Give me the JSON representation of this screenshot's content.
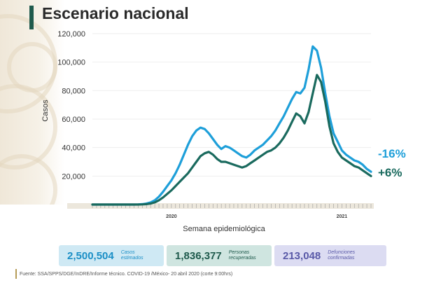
{
  "title": "Escenario nacional",
  "chart_data": {
    "type": "line",
    "ylabel": "Casos",
    "xlabel": "Semana epidemiológica",
    "ylim": [
      0,
      120000
    ],
    "yticks": [
      "120,000",
      "100,000",
      "80,000",
      "60,000",
      "40,000",
      "20,000"
    ],
    "ytick_values": [
      120000,
      100000,
      80000,
      60000,
      40000,
      20000
    ],
    "year_labels": [
      {
        "label": "2020",
        "week": 19
      },
      {
        "label": "2021",
        "week": 60
      }
    ],
    "week_count": 68,
    "series": [
      {
        "color": "#1e9fd9",
        "end_label": "-16%",
        "values": [
          0,
          0,
          0,
          0,
          0,
          0,
          0,
          0,
          0,
          0,
          0,
          100,
          300,
          700,
          1500,
          3000,
          5500,
          9000,
          13000,
          17000,
          22000,
          28000,
          35000,
          42000,
          48000,
          52000,
          54000,
          53000,
          50000,
          46000,
          42000,
          39000,
          41000,
          40000,
          38000,
          36000,
          34000,
          33000,
          35000,
          38000,
          40000,
          42000,
          45000,
          48000,
          52000,
          57000,
          62000,
          68000,
          74000,
          79000,
          78000,
          82000,
          95000,
          111000,
          108000,
          96000,
          78000,
          62000,
          50000,
          44000,
          38000,
          35000,
          33000,
          31000,
          30000,
          28000,
          25000,
          23000
        ]
      },
      {
        "color": "#1a6a5e",
        "end_label": "+6%",
        "values": [
          0,
          0,
          0,
          0,
          0,
          0,
          0,
          0,
          0,
          0,
          0,
          0,
          100,
          300,
          700,
          1500,
          3000,
          5000,
          7500,
          10000,
          13000,
          16000,
          19000,
          22000,
          26000,
          30000,
          34000,
          36000,
          37000,
          35000,
          32000,
          30000,
          30000,
          29000,
          28000,
          27000,
          26000,
          27000,
          29000,
          31000,
          33000,
          35000,
          37000,
          38000,
          40000,
          43000,
          47000,
          52000,
          58000,
          64000,
          62000,
          57000,
          65000,
          78000,
          91000,
          86000,
          72000,
          55000,
          43000,
          37000,
          33000,
          31000,
          29000,
          27000,
          26000,
          24000,
          22000,
          20000
        ]
      }
    ]
  },
  "stats": [
    {
      "value": "2,500,504",
      "label": "Casos estimados",
      "bg": "#cfe9f4",
      "color": "#1b8fc6"
    },
    {
      "value": "1,836,377",
      "label": "Personas recuperadas",
      "bg": "#cfe5e0",
      "color": "#1f5a4c"
    },
    {
      "value": "213,048",
      "label": "Defunciones confirmadas",
      "bg": "#dcdcf2",
      "color": "#5a5aa8"
    }
  ],
  "source": "Fuente: SSA/SPPS/DGE/InDRE/Informe técnico. COVID-19 /México- 20 abril 2020 (corte 9:00hrs)"
}
